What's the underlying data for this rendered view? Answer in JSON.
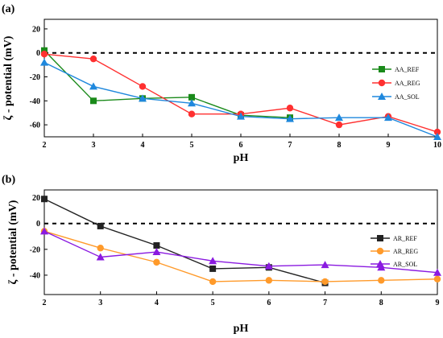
{
  "chart_data": [
    {
      "type": "line",
      "panel_label": "(a)",
      "xlabel": "pH",
      "ylabel": "ζ - potential (mV)",
      "x_ticks": [
        2,
        3,
        4,
        5,
        6,
        7,
        8,
        9,
        10
      ],
      "y_ticks": [
        20,
        0,
        -20,
        -40,
        -60
      ],
      "xlim": [
        2,
        10
      ],
      "ylim": [
        -70,
        28
      ],
      "zero_line": true,
      "legend_placement": "right",
      "series": [
        {
          "name": "AA_REF",
          "color": "#1a8a1a",
          "marker": "square",
          "x": [
            2,
            3,
            4,
            5,
            6,
            7
          ],
          "y": [
            2,
            -40,
            -38,
            -37,
            -52,
            -54
          ]
        },
        {
          "name": "AA_REG",
          "color": "#ff3030",
          "marker": "circle",
          "x": [
            2,
            3,
            4,
            5,
            6,
            7,
            8,
            9,
            10
          ],
          "y": [
            -1,
            -5,
            -28,
            -51,
            -51,
            -46,
            -60,
            -53,
            -66
          ]
        },
        {
          "name": "AA_SOL",
          "color": "#1f88dd",
          "marker": "triangle",
          "x": [
            2,
            3,
            4,
            5,
            6,
            7,
            8,
            9,
            10
          ],
          "y": [
            -8,
            -28,
            -38,
            -42,
            -53,
            -55,
            -54,
            -54,
            -70
          ]
        }
      ]
    },
    {
      "type": "line",
      "panel_label": "(b)",
      "xlabel": "pH",
      "ylabel": "ζ - potential (mV)",
      "x_ticks": [
        2,
        3,
        4,
        5,
        6,
        7,
        8,
        9
      ],
      "y_ticks": [
        20,
        0,
        -20,
        -40
      ],
      "xlim": [
        2,
        9
      ],
      "ylim": [
        -55,
        26
      ],
      "zero_line": true,
      "legend_placement": "right",
      "series": [
        {
          "name": "AR_REF",
          "color": "#222222",
          "marker": "square",
          "x": [
            2,
            3,
            4,
            5,
            6,
            7
          ],
          "y": [
            19,
            -2,
            -17,
            -35,
            -34,
            -46
          ]
        },
        {
          "name": "AR_REG",
          "color": "#ff9a2a",
          "marker": "circle",
          "x": [
            2,
            3,
            4,
            5,
            6,
            7,
            8,
            9
          ],
          "y": [
            -6,
            -19,
            -30,
            -45,
            -44,
            -45,
            -44,
            -43
          ]
        },
        {
          "name": "AR_SOL",
          "color": "#8a1ae0",
          "marker": "triangle",
          "x": [
            2,
            3,
            4,
            5,
            6,
            7,
            8,
            9
          ],
          "y": [
            -6,
            -26,
            -22,
            -29,
            -33,
            -32,
            -34,
            -38
          ]
        }
      ]
    }
  ]
}
